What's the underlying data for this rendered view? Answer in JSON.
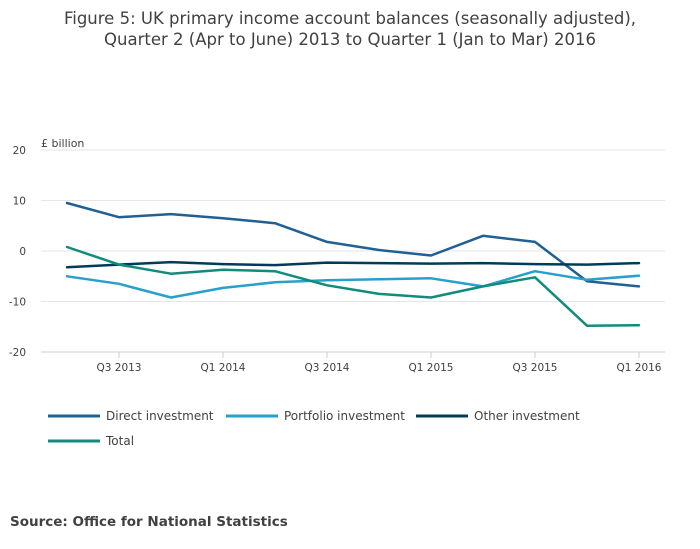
{
  "chart_data": {
    "type": "line",
    "title_lines": [
      "Figure 5: UK primary income account balances (seasonally adjusted),",
      "Quarter 2 (Apr to June) 2013 to Quarter 1 (Jan to Mar) 2016"
    ],
    "ylabel": "£ billion",
    "ylim": [
      -20,
      20
    ],
    "yticks": [
      20,
      10,
      0,
      -10,
      -20
    ],
    "ytick_labels": [
      "20",
      "10",
      "0",
      "-10",
      "-20"
    ],
    "x": [
      "Q2 2013",
      "Q3 2013",
      "Q4 2013",
      "Q1 2014",
      "Q2 2014",
      "Q3 2014",
      "Q4 2014",
      "Q1 2015",
      "Q2 2015",
      "Q3 2015",
      "Q4 2015",
      "Q1 2016"
    ],
    "xtick_indices": [
      1,
      3,
      5,
      7,
      9,
      11
    ],
    "xtick_labels": [
      "Q3 2013",
      "Q1 2014",
      "Q3 2014",
      "Q1 2015",
      "Q3 2015",
      "Q1 2016"
    ],
    "series": [
      {
        "name": "Direct investment",
        "color": "#206095",
        "values": [
          9.5,
          6.7,
          7.3,
          6.5,
          5.5,
          1.8,
          0.2,
          -0.9,
          3.0,
          1.8,
          -6.0,
          -7.0
        ]
      },
      {
        "name": "Portfolio investment",
        "color": "#27A0CC",
        "values": [
          -5.0,
          -6.5,
          -9.2,
          -7.3,
          -6.2,
          -5.8,
          -5.6,
          -5.4,
          -7.0,
          -4.0,
          -5.7,
          -4.9
        ]
      },
      {
        "name": "Other investment",
        "color": "#003C57",
        "values": [
          -3.2,
          -2.7,
          -2.2,
          -2.6,
          -2.8,
          -2.3,
          -2.4,
          -2.5,
          -2.4,
          -2.6,
          -2.7,
          -2.4
        ]
      },
      {
        "name": "Total",
        "color": "#118C7B",
        "values": [
          0.8,
          -2.7,
          -4.5,
          -3.7,
          -4.0,
          -6.8,
          -8.5,
          -9.2,
          -7.0,
          -5.2,
          -14.8,
          -14.7
        ]
      }
    ],
    "legend_position": "bottom-left",
    "grid": true
  },
  "source": "Source: Office for National Statistics"
}
